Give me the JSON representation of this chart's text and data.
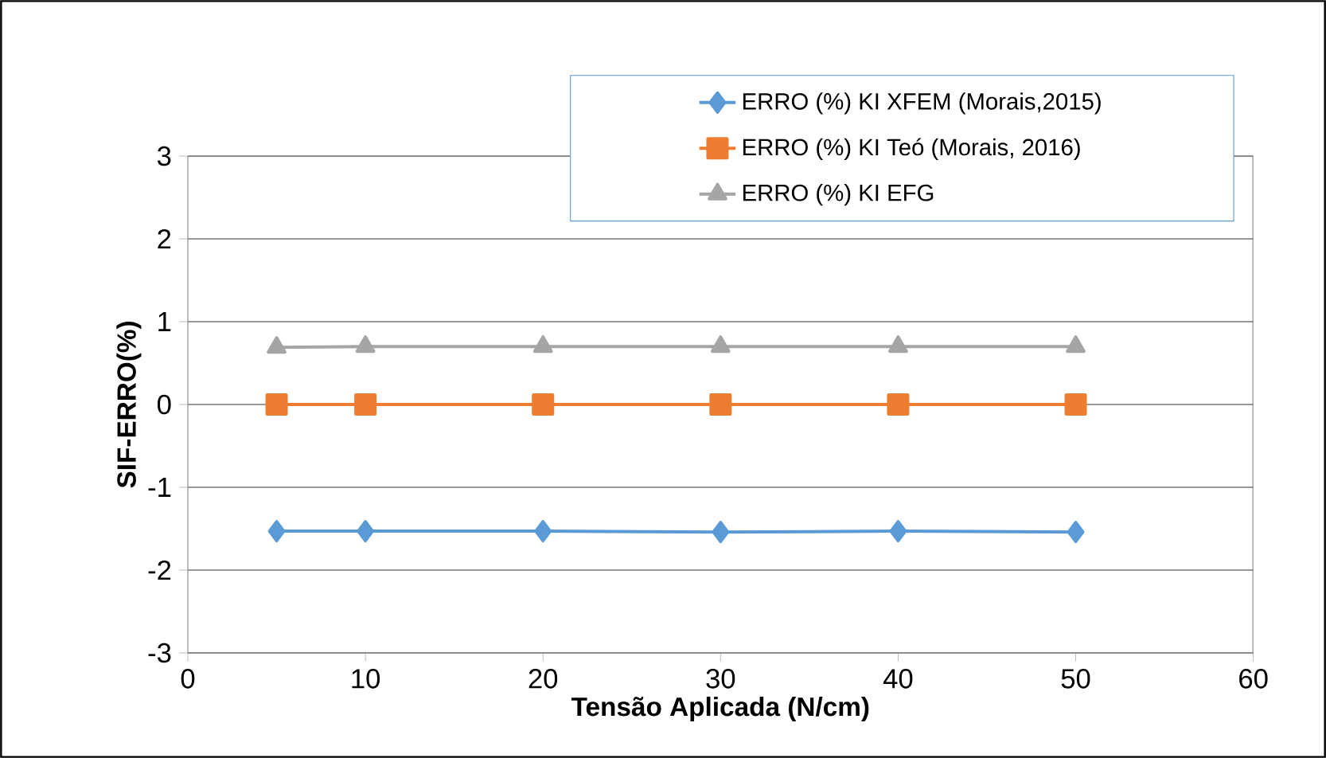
{
  "chart_data": {
    "type": "line",
    "xlabel": "Tensão Aplicada (N/cm)",
    "ylabel": "SIF-ERRO(%)",
    "x": [
      5,
      10,
      20,
      30,
      40,
      50
    ],
    "series": [
      {
        "name": "ERRO (%) KI XFEM (Morais,2015)",
        "color": "#5b9bd5",
        "marker": "diamond",
        "values": [
          -1.53,
          -1.53,
          -1.53,
          -1.54,
          -1.53,
          -1.54
        ]
      },
      {
        "name": "ERRO (%) KI Teó (Morais, 2016)",
        "color": "#ed7d31",
        "marker": "square",
        "values": [
          0,
          0,
          0,
          0,
          0,
          0
        ]
      },
      {
        "name": "ERRO (%) KI EFG",
        "color": "#a5a5a5",
        "marker": "triangle",
        "values": [
          0.69,
          0.7,
          0.7,
          0.7,
          0.7,
          0.7
        ]
      }
    ],
    "xlim": [
      0,
      60
    ],
    "xticks": [
      0,
      10,
      20,
      30,
      40,
      50,
      60
    ],
    "ylim": [
      -3,
      3
    ],
    "yticks": [
      -3,
      -2,
      -1,
      0,
      1,
      2,
      3
    ],
    "grid": "y",
    "legend": "top right"
  }
}
